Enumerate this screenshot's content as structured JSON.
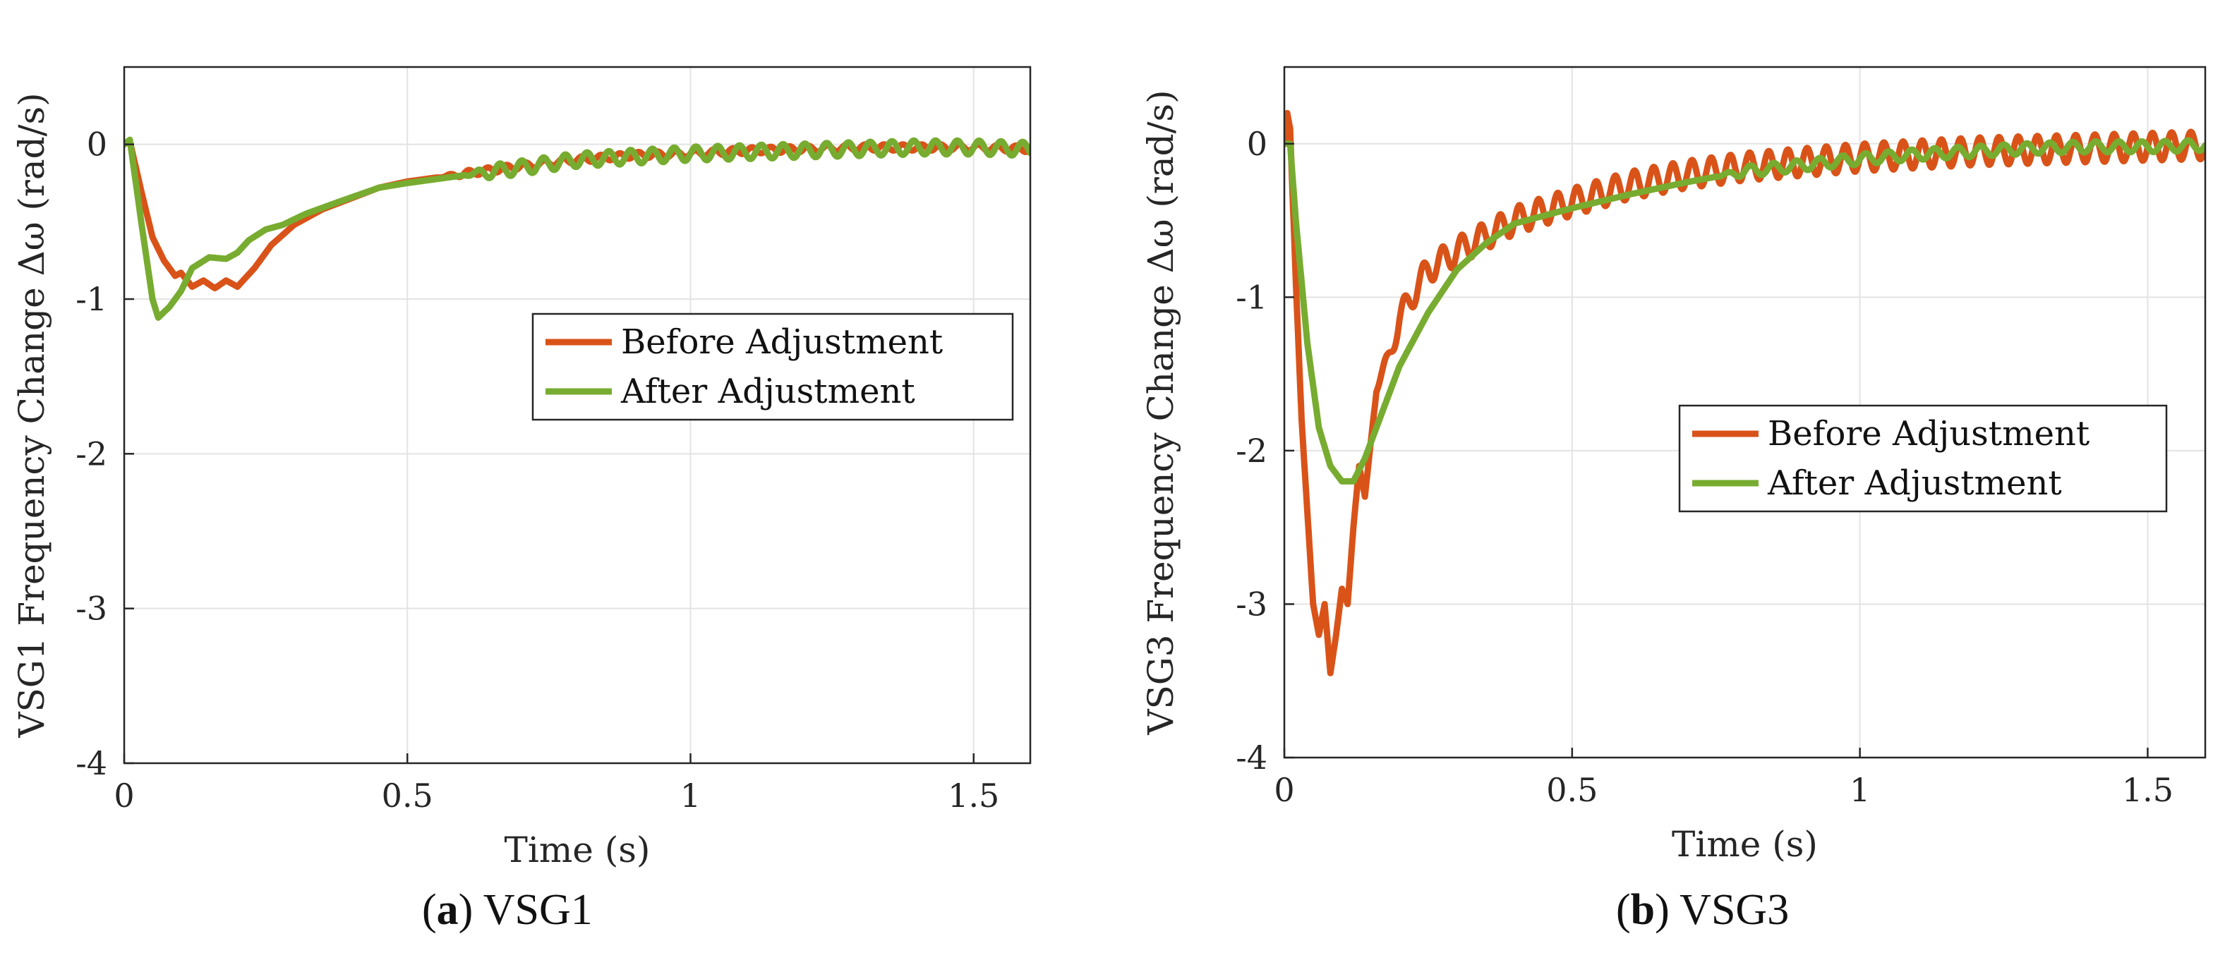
{
  "colors": {
    "before": "#d95319",
    "after": "#77ac30",
    "grid": "#e3e3e3",
    "axis": "#262626"
  },
  "chart_data": [
    {
      "id": "a",
      "type": "line",
      "caption_letter": "a",
      "caption_text": "VSG1",
      "xlabel": "Time (s)",
      "ylabel": "VSG1 Frequency Change Δω  (rad/s)",
      "xlim": [
        0,
        1.6
      ],
      "ylim": [
        -4,
        0.5
      ],
      "xticks": [
        0,
        0.5,
        1,
        1.5
      ],
      "yticks": [
        0,
        -1,
        -2,
        -3,
        -4
      ],
      "xtick_labels": [
        "0",
        "0.5",
        "1",
        "1.5"
      ],
      "ytick_labels": [
        "0",
        "-1",
        "-2",
        "-3",
        "-4"
      ],
      "grid": true,
      "legend": {
        "placement": "center-right",
        "entries": [
          "Before Adjustment",
          "After Adjustment"
        ]
      },
      "series": [
        {
          "name": "Before Adjustment",
          "x": [
            0,
            0.01,
            0.03,
            0.05,
            0.07,
            0.09,
            0.1,
            0.12,
            0.14,
            0.16,
            0.18,
            0.2,
            0.23,
            0.26,
            0.3,
            0.35,
            0.4,
            0.45,
            0.5,
            0.6,
            0.7,
            0.8,
            0.9,
            1.0,
            1.1,
            1.2,
            1.3,
            1.4,
            1.5,
            1.6
          ],
          "y": [
            0,
            0.02,
            -0.3,
            -0.6,
            -0.75,
            -0.85,
            -0.83,
            -0.92,
            -0.88,
            -0.93,
            -0.88,
            -0.92,
            -0.8,
            -0.65,
            -0.52,
            -0.42,
            -0.35,
            -0.28,
            -0.24,
            -0.19,
            -0.14,
            -0.1,
            -0.07,
            -0.06,
            -0.04,
            -0.03,
            -0.02,
            -0.02,
            -0.02,
            -0.03
          ],
          "oscillation": {
            "start": 0.55,
            "amplitude": 0.02,
            "frequency": 30
          }
        },
        {
          "name": "After Adjustment",
          "x": [
            0,
            0.01,
            0.03,
            0.05,
            0.06,
            0.08,
            0.1,
            0.12,
            0.15,
            0.18,
            0.2,
            0.22,
            0.25,
            0.28,
            0.32,
            0.38,
            0.45,
            0.5,
            0.6,
            0.7,
            0.8,
            0.9,
            1.0,
            1.1,
            1.2,
            1.3,
            1.4,
            1.5,
            1.6
          ],
          "y": [
            0,
            0.03,
            -0.5,
            -1.0,
            -1.12,
            -1.05,
            -0.95,
            -0.8,
            -0.73,
            -0.74,
            -0.7,
            -0.62,
            -0.55,
            -0.52,
            -0.45,
            -0.37,
            -0.28,
            -0.25,
            -0.2,
            -0.15,
            -0.1,
            -0.08,
            -0.06,
            -0.05,
            -0.04,
            -0.03,
            -0.02,
            -0.02,
            -0.03
          ],
          "oscillation": {
            "start": 0.6,
            "amplitude": 0.045,
            "frequency": 26
          }
        }
      ]
    },
    {
      "id": "b",
      "type": "line",
      "caption_letter": "b",
      "caption_text": "VSG3",
      "xlabel": "Time (s)",
      "ylabel": "VSG3 Frequency Change Δω  (rad/s)",
      "xlim": [
        0,
        1.6
      ],
      "ylim": [
        -4,
        0.5
      ],
      "xticks": [
        0,
        0.5,
        1,
        1.5
      ],
      "yticks": [
        0,
        -1,
        -2,
        -3,
        -4
      ],
      "xtick_labels": [
        "0",
        "0.5",
        "1",
        "1.5"
      ],
      "ytick_labels": [
        "0",
        "-1",
        "-2",
        "-3",
        "-4"
      ],
      "grid": true,
      "legend": {
        "placement": "center-right",
        "entries": [
          "Before Adjustment",
          "After Adjustment"
        ]
      },
      "series": [
        {
          "name": "Before Adjustment",
          "x": [
            0,
            0.005,
            0.01,
            0.02,
            0.03,
            0.04,
            0.05,
            0.06,
            0.07,
            0.08,
            0.09,
            0.1,
            0.11,
            0.12,
            0.13,
            0.14,
            0.16,
            0.18,
            0.2,
            0.22,
            0.25,
            0.3,
            0.35,
            0.4,
            0.5,
            0.6,
            0.7,
            0.8,
            0.9,
            1.0,
            1.2,
            1.4,
            1.6
          ],
          "y": [
            0,
            0.2,
            0.1,
            -0.9,
            -1.8,
            -2.4,
            -3.0,
            -3.2,
            -3.0,
            -3.45,
            -3.2,
            -2.9,
            -3.0,
            -2.5,
            -2.1,
            -2.3,
            -1.6,
            -1.4,
            -1.15,
            -1.0,
            -0.82,
            -0.7,
            -0.6,
            -0.5,
            -0.38,
            -0.27,
            -0.2,
            -0.15,
            -0.12,
            -0.09,
            -0.05,
            -0.03,
            -0.01
          ],
          "oscillation": {
            "start": 0.15,
            "amplitude": 0.09,
            "frequency": 30
          }
        },
        {
          "name": "After Adjustment",
          "x": [
            0,
            0.01,
            0.02,
            0.04,
            0.06,
            0.08,
            0.1,
            0.12,
            0.14,
            0.16,
            0.2,
            0.25,
            0.3,
            0.35,
            0.4,
            0.5,
            0.6,
            0.7,
            0.8,
            0.9,
            1.0,
            1.1,
            1.2,
            1.3,
            1.4,
            1.5,
            1.6
          ],
          "y": [
            0,
            0.0,
            -0.5,
            -1.3,
            -1.85,
            -2.1,
            -2.2,
            -2.2,
            -2.05,
            -1.85,
            -1.45,
            -1.1,
            -0.82,
            -0.65,
            -0.52,
            -0.42,
            -0.33,
            -0.25,
            -0.18,
            -0.14,
            -0.1,
            -0.07,
            -0.05,
            -0.03,
            -0.02,
            -0.02,
            -0.01
          ],
          "oscillation": {
            "start": 0.75,
            "amplitude": 0.035,
            "frequency": 25
          }
        }
      ]
    }
  ]
}
